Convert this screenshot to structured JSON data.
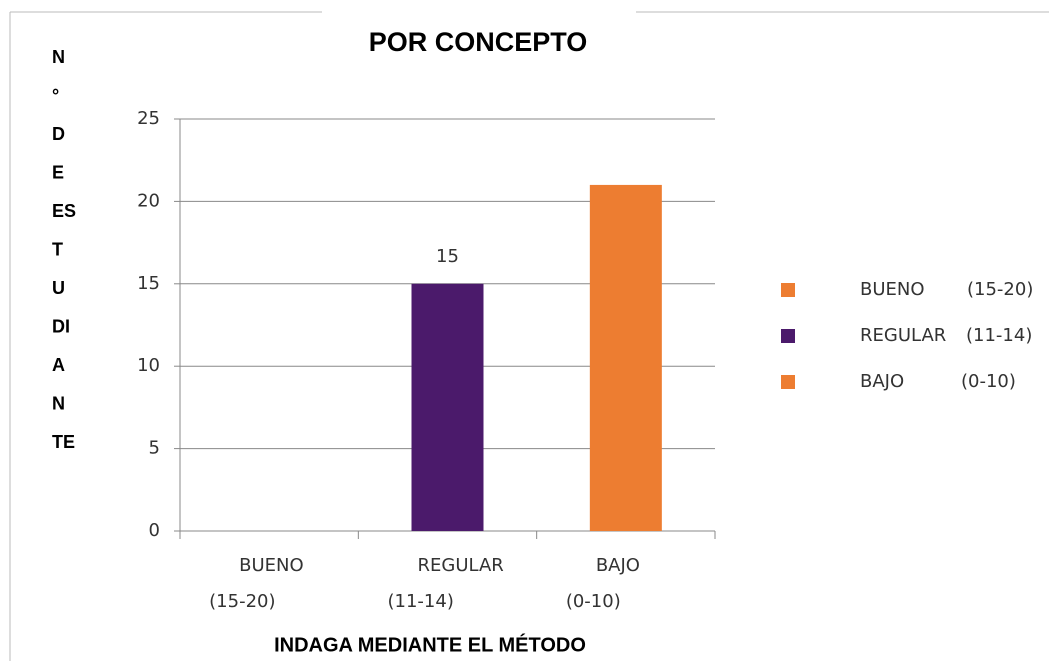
{
  "chart_data": {
    "type": "bar",
    "title": "POR CONCEPTO",
    "y_label": [
      "N",
      "°",
      "D",
      "E",
      "ES",
      "T",
      "U",
      "DI",
      "A",
      "N",
      "TE"
    ],
    "x_label": "INDAGA MEDIANTE EL MÉTODO",
    "categories": [
      [
        "BUENO",
        "(15-20)"
      ],
      [
        "REGULAR",
        "(11-14)"
      ],
      [
        "BAJO",
        "(0-10)"
      ]
    ],
    "values": [
      0,
      15,
      21
    ],
    "value_labels": [
      null,
      "15",
      null
    ],
    "colors": [
      "#ed7d31",
      "#4b1a6b",
      "#ed7d31"
    ],
    "ylim": [
      0,
      25
    ],
    "yticks": [
      0,
      5,
      10,
      15,
      20,
      25
    ],
    "grid": true,
    "legend_position": "right",
    "legend": [
      {
        "name": [
          "BUENO",
          "(15-20)"
        ],
        "color": "#ed7d31"
      },
      {
        "name": [
          "REGULAR",
          "(11-14)"
        ],
        "color": "#4b1a6b"
      },
      {
        "name": [
          "BAJO",
          "(0-10)"
        ],
        "color": "#ed7d31"
      }
    ]
  }
}
